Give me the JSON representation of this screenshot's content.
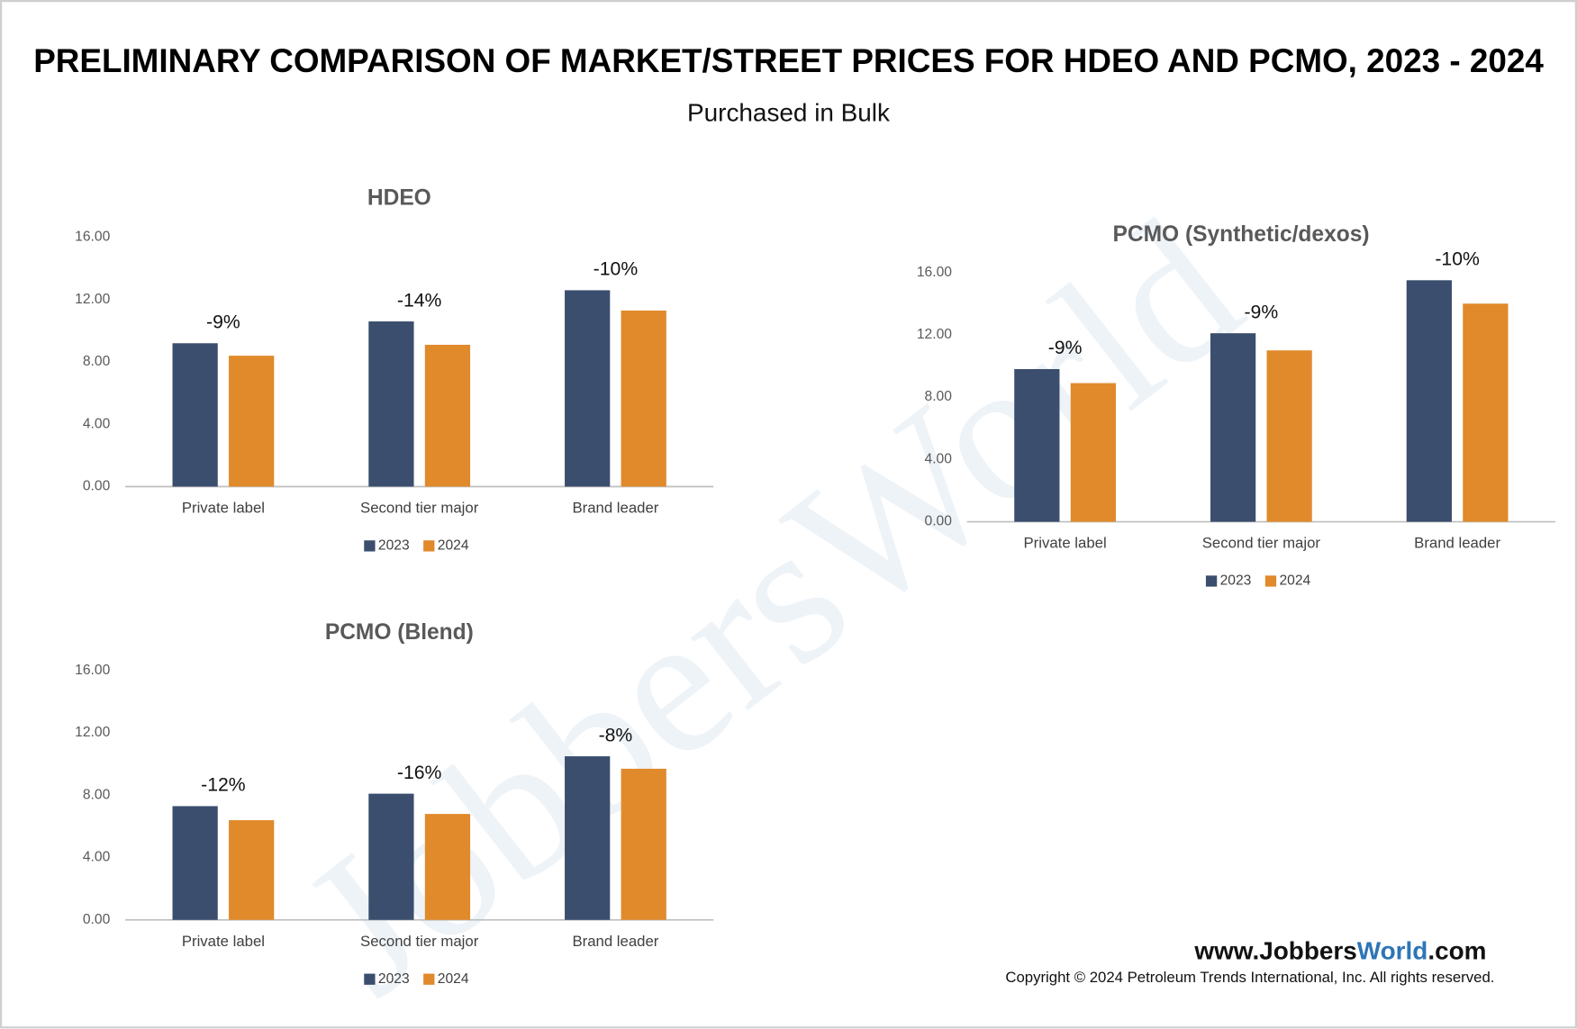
{
  "title": "PRELIMINARY COMPARISON OF MARKET/STREET PRICES FOR HDEO AND PCMO, 2023 - 2024",
  "subtitle": "Purchased in Bulk",
  "watermark": "JobbersWorld",
  "footer": {
    "site": [
      "www.Jobbers",
      "World",
      ".com"
    ],
    "copyright": "Copyright © 2024 Petroleum Trends International, Inc. All rights reserved."
  },
  "chart_data": [
    {
      "type": "bar",
      "title": "HDEO",
      "categories": [
        "Private label",
        "Second tier major",
        "Brand leader"
      ],
      "series": [
        {
          "name": "2023",
          "color": "#3b4e6e",
          "values": [
            9.2,
            10.6,
            12.6
          ]
        },
        {
          "name": "2024",
          "color": "#e08a2c",
          "values": [
            8.4,
            9.1,
            11.3
          ]
        }
      ],
      "annotations": [
        "-9%",
        "-14%",
        "-10%"
      ],
      "ylim": [
        0,
        16
      ],
      "yticks": [
        {
          "value": 0,
          "label": "0.00"
        },
        {
          "value": 4,
          "label": "4.00"
        },
        {
          "value": 8,
          "label": "8.00"
        },
        {
          "value": 12,
          "label": "12.00"
        },
        {
          "value": 16,
          "label": "16.00"
        }
      ],
      "legend": "bottom"
    },
    {
      "type": "bar",
      "title": "PCMO (Synthetic/dexos)",
      "categories": [
        "Private label",
        "Second tier major",
        "Brand leader"
      ],
      "series": [
        {
          "name": "2023",
          "color": "#3b4e6e",
          "values": [
            9.8,
            12.1,
            15.5
          ]
        },
        {
          "name": "2024",
          "color": "#e08a2c",
          "values": [
            8.9,
            11.0,
            14.0
          ]
        }
      ],
      "annotations": [
        "-9%",
        "-9%",
        "-10%"
      ],
      "ylim": [
        0,
        16
      ],
      "yticks": [
        {
          "value": 0,
          "label": "0.00"
        },
        {
          "value": 4,
          "label": "4.00"
        },
        {
          "value": 8,
          "label": "8.00"
        },
        {
          "value": 12,
          "label": "12.00"
        },
        {
          "value": 16,
          "label": "16.00"
        }
      ],
      "legend": "bottom"
    },
    {
      "type": "bar",
      "title": "PCMO (Blend)",
      "categories": [
        "Private label",
        "Second tier major",
        "Brand leader"
      ],
      "series": [
        {
          "name": "2023",
          "color": "#3b4e6e",
          "values": [
            7.3,
            8.1,
            10.5
          ]
        },
        {
          "name": "2024",
          "color": "#e08a2c",
          "values": [
            6.4,
            6.8,
            9.7
          ]
        }
      ],
      "annotations": [
        "-12%",
        "-16%",
        "-8%"
      ],
      "ylim": [
        0,
        16
      ],
      "yticks": [
        {
          "value": 0,
          "label": "0.00"
        },
        {
          "value": 4,
          "label": "4.00"
        },
        {
          "value": 8,
          "label": "8.00"
        },
        {
          "value": 12,
          "label": "12.00"
        },
        {
          "value": 16,
          "label": "16.00"
        }
      ],
      "legend": "bottom"
    }
  ]
}
